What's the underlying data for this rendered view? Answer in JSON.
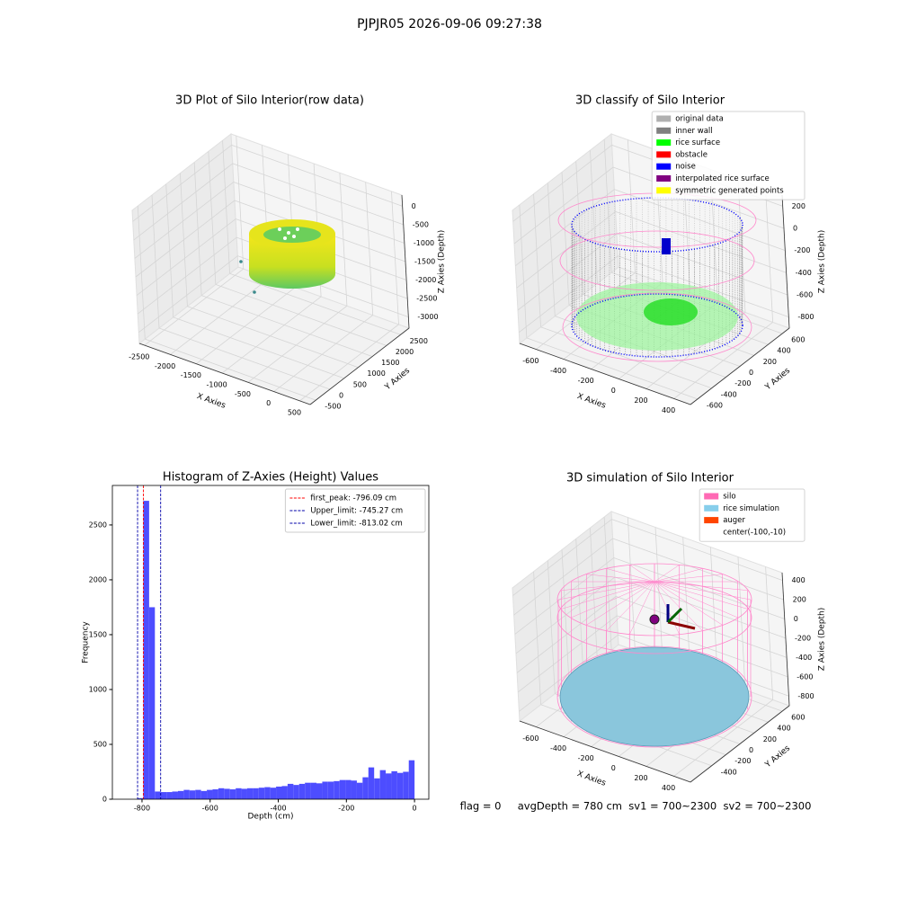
{
  "title": "PJPJR05 2026-09-06 09:27:38",
  "footer": "flag = 0     avgDepth = 780 cm  sv1 = 700~2300  sv2 = 700~2300",
  "chart_data": [
    {
      "type": "scatter3d",
      "title": "3D Plot of Silo Interior(row data)",
      "xlabel": "X Axies",
      "ylabel": "Y Axies",
      "zlabel": "Z Axies (Depth)",
      "xlim": [
        -2600,
        700
      ],
      "xticks": [
        -2500,
        -2000,
        -1500,
        -1000,
        -500,
        0,
        500
      ],
      "ylim": [
        -700,
        2800
      ],
      "yticks": [
        -500,
        0,
        500,
        1000,
        1500,
        2000,
        2500
      ],
      "zlim": [
        -3300,
        300
      ],
      "zticks": [
        -3000,
        -2500,
        -2000,
        -1500,
        -1000,
        -500,
        0
      ]
    },
    {
      "type": "scatter3d",
      "title": "3D classify of Silo Interior",
      "xlabel": "X Axies",
      "ylabel": "Y Axies",
      "zlabel": "Z Axies (Depth)",
      "xlim": [
        -720,
        520
      ],
      "xticks": [
        -600,
        -400,
        -200,
        0,
        200,
        400
      ],
      "ylim": [
        -700,
        700
      ],
      "yticks": [
        -600,
        -400,
        -200,
        0,
        200,
        400,
        600
      ],
      "zlim": [
        -900,
        300
      ],
      "zticks": [
        -800,
        -600,
        -400,
        -200,
        0,
        200
      ],
      "legend": [
        {
          "name": "original data",
          "color": "#b0b0b0"
        },
        {
          "name": "inner wall",
          "color": "#808080"
        },
        {
          "name": "rice surface",
          "color": "#00ff00"
        },
        {
          "name": "obstacle",
          "color": "#ff0000"
        },
        {
          "name": "noise",
          "color": "#0000ff"
        },
        {
          "name": "interpolated rice surface",
          "color": "#800080"
        },
        {
          "name": "symmetric generated points",
          "color": "#ffff00"
        }
      ]
    },
    {
      "type": "histogram",
      "title": "Histogram of Z-Axies (Height) Values",
      "xlabel": "Depth (cm)",
      "ylabel": "Frequency",
      "color": "#4d4dff",
      "xlim": [
        -887,
        42
      ],
      "xticks": [
        -800,
        -600,
        -400,
        -200,
        0
      ],
      "ylim": [
        0,
        2860
      ],
      "yticks": [
        0,
        500,
        1000,
        1500,
        2000,
        2500
      ],
      "bins": [
        -813,
        -796.1,
        -779.1,
        -762.2,
        -745.3,
        -728.3,
        -711.4,
        -694.4,
        -677.5,
        -660.6,
        -643.6,
        -626.7,
        -609.7,
        -592.8,
        -575.9,
        -558.9,
        -542,
        -525,
        -508.1,
        -491.2,
        -474.2,
        -457.3,
        -440.3,
        -423.4,
        -406.5,
        -389.5,
        -372.6,
        -355.6,
        -338.7,
        -321.8,
        -304.8,
        -287.9,
        -270.9,
        -254,
        -237.1,
        -220.1,
        -203.2,
        -186.2,
        -169.3,
        -152.4,
        -135.4,
        -118.5,
        -101.5,
        -84.6,
        -67.7,
        -50.7,
        -33.8,
        -16.8,
        0.1
      ],
      "values": [
        10,
        2720,
        1750,
        70,
        65,
        65,
        70,
        75,
        85,
        80,
        85,
        75,
        85,
        90,
        100,
        95,
        90,
        100,
        95,
        100,
        100,
        105,
        110,
        105,
        115,
        120,
        140,
        130,
        140,
        150,
        150,
        145,
        160,
        160,
        165,
        175,
        175,
        170,
        150,
        200,
        290,
        190,
        265,
        235,
        255,
        240,
        250,
        355
      ],
      "vlines": [
        {
          "label": "first_peak: -796.09 cm",
          "value": -796.09,
          "color": "#ff0000"
        },
        {
          "label": "Upper_limit: -745.27 cm",
          "value": -745.27,
          "color": "#0000aa"
        },
        {
          "label": "Lower_limit: -813.02 cm",
          "value": -813.02,
          "color": "#0000aa"
        }
      ],
      "legend_loc": "upper right"
    },
    {
      "type": "scatter3d",
      "title": "3D simulation of Silo Interior",
      "xlabel": "X Axies",
      "ylabel": "Y Axies",
      "zlabel": "Z Axies (Depth)",
      "xlim": [
        -720,
        520
      ],
      "xticks": [
        -600,
        -400,
        -200,
        0,
        200,
        400
      ],
      "ylim": [
        -700,
        700
      ],
      "yticks": [
        -400,
        -200,
        0,
        200,
        400,
        600
      ],
      "zlim": [
        -900,
        480
      ],
      "zticks": [
        -800,
        -600,
        -400,
        -200,
        0,
        200,
        400
      ],
      "legend": [
        {
          "name": "silo",
          "color": "#ff69b4"
        },
        {
          "name": "rice simulation",
          "color": "#87ceeb"
        },
        {
          "name": "auger",
          "color": "#ff4500"
        },
        {
          "name": "center(-100,-10)",
          "color": "none"
        }
      ]
    }
  ]
}
